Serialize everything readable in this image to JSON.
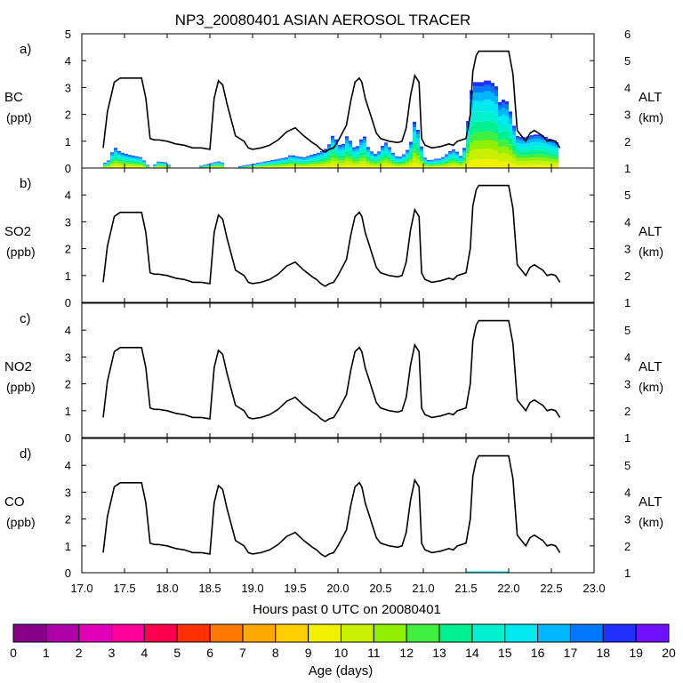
{
  "title": "NP3_20080401 ASIAN AEROSOL TRACER",
  "x_axis": {
    "label": "Hours past 0 UTC on 20080401",
    "range": [
      17.0,
      23.0
    ],
    "ticks": [
      "17.0",
      "17.5",
      "18.0",
      "18.5",
      "19.0",
      "19.5",
      "20.0",
      "20.5",
      "21.0",
      "21.5",
      "22.0",
      "22.5",
      "23.0"
    ]
  },
  "colors": {
    "line": "#000000",
    "palette": [
      "#880088",
      "#b000a8",
      "#e000b8",
      "#ff0098",
      "#ff0050",
      "#ff3000",
      "#ff7800",
      "#ffa800",
      "#ffd000",
      "#f0f000",
      "#c8f000",
      "#90f000",
      "#40f040",
      "#00f090",
      "#00f0d0",
      "#00e8f0",
      "#00b8ff",
      "#0078ff",
      "#2030ff",
      "#7010ff"
    ]
  },
  "panels": [
    {
      "letter": "a)",
      "species": "BC",
      "units": "(ppt)",
      "left_ticks": [
        "0",
        "1",
        "2",
        "3",
        "4",
        "5"
      ],
      "right_ticks": [
        "1",
        "2",
        "3",
        "4",
        "5",
        "6"
      ],
      "right_label": "ALT",
      "right_units": "(km)"
    },
    {
      "letter": "b)",
      "species": "SO2",
      "units": "(ppb)",
      "left_ticks": [
        "0",
        "1",
        "2",
        "3",
        "4"
      ],
      "right_ticks": [
        "1",
        "2",
        "3",
        "4",
        "5"
      ],
      "right_label": "ALT",
      "right_units": "(km)"
    },
    {
      "letter": "c)",
      "species": "NO2",
      "units": "(ppb)",
      "left_ticks": [
        "0",
        "1",
        "2",
        "3",
        "4"
      ],
      "right_ticks": [
        "1",
        "2",
        "3",
        "4",
        "5"
      ],
      "right_label": "ALT",
      "right_units": "(km)"
    },
    {
      "letter": "d)",
      "species": "CO",
      "units": "(ppb)",
      "left_ticks": [
        "0",
        "1",
        "2",
        "3",
        "4"
      ],
      "right_ticks": [
        "1",
        "2",
        "3",
        "4",
        "5"
      ],
      "right_label": "ALT",
      "right_units": "(km)"
    }
  ],
  "colorbar": {
    "label": "Age (days)",
    "ticks": [
      "0",
      "1",
      "2",
      "3",
      "4",
      "5",
      "6",
      "7",
      "8",
      "9",
      "10",
      "11",
      "12",
      "13",
      "14",
      "15",
      "16",
      "17",
      "18",
      "19",
      "20"
    ]
  },
  "chart_data": {
    "type": "area",
    "title": "NP3_20080401 ASIAN AEROSOL TRACER",
    "xlabel": "Hours past 0 UTC on 20080401",
    "xlim": [
      17.0,
      23.0
    ],
    "altitude_km": {
      "x": [
        17.25,
        17.3,
        17.38,
        17.45,
        17.5,
        17.7,
        17.75,
        17.8,
        17.85,
        17.9,
        18.0,
        18.1,
        18.2,
        18.3,
        18.4,
        18.5,
        18.55,
        18.6,
        18.65,
        18.7,
        18.8,
        18.9,
        18.95,
        19.0,
        19.1,
        19.2,
        19.3,
        19.4,
        19.5,
        19.6,
        19.7,
        19.75,
        19.8,
        19.85,
        19.9,
        19.95,
        20.0,
        20.1,
        20.15,
        20.2,
        20.25,
        20.28,
        20.32,
        20.38,
        20.45,
        20.5,
        20.6,
        20.7,
        20.75,
        20.8,
        20.85,
        20.9,
        20.95,
        20.98,
        21.02,
        21.1,
        21.2,
        21.3,
        21.35,
        21.4,
        21.5,
        21.55,
        21.58,
        21.62,
        21.65,
        21.7,
        21.75,
        21.8,
        21.85,
        21.9,
        21.95,
        22.0,
        22.05,
        22.1,
        22.15,
        22.2,
        22.25,
        22.3,
        22.4,
        22.45,
        22.5,
        22.55,
        22.6
      ],
      "y": [
        1.75,
        3.1,
        4.2,
        4.35,
        4.35,
        4.35,
        3.6,
        2.1,
        2.05,
        2.05,
        2.0,
        1.9,
        1.85,
        1.75,
        1.75,
        1.7,
        3.6,
        4.25,
        4.1,
        3.4,
        2.2,
        2.0,
        1.75,
        1.7,
        1.75,
        1.85,
        2.05,
        2.35,
        2.5,
        2.2,
        1.95,
        1.85,
        1.7,
        1.6,
        1.7,
        1.75,
        2.0,
        2.6,
        3.5,
        4.2,
        4.35,
        4.2,
        3.6,
        3.0,
        2.3,
        2.1,
        2.0,
        1.95,
        2.0,
        2.5,
        3.7,
        4.45,
        4.2,
        2.1,
        1.85,
        1.75,
        1.8,
        1.9,
        1.85,
        2.0,
        2.1,
        3.0,
        4.6,
        5.2,
        5.35,
        5.35,
        5.35,
        5.35,
        5.35,
        5.35,
        5.35,
        5.35,
        4.5,
        2.4,
        2.2,
        2.0,
        2.3,
        2.4,
        2.2,
        2.0,
        2.05,
        2.0,
        1.75
      ]
    },
    "bc_tracer_total_ppt": {
      "x": [
        17.25,
        17.32,
        17.38,
        17.45,
        17.5,
        17.55,
        17.7,
        17.8,
        17.9,
        18.0,
        18.05,
        18.1,
        18.3,
        18.6,
        18.65,
        18.7,
        18.75,
        19.4,
        19.45,
        19.5,
        19.6,
        19.7,
        19.75,
        19.8,
        19.85,
        19.9,
        19.95,
        20.0,
        20.05,
        20.1,
        20.15,
        20.2,
        20.25,
        20.3,
        20.35,
        20.4,
        20.45,
        20.5,
        20.55,
        20.6,
        20.65,
        20.7,
        20.75,
        20.8,
        20.85,
        20.9,
        20.95,
        21.0,
        21.05,
        21.1,
        21.15,
        21.2,
        21.25,
        21.3,
        21.35,
        21.4,
        21.45,
        21.5,
        21.55,
        21.6,
        21.65,
        21.7,
        21.75,
        21.8,
        21.85,
        21.9,
        21.95,
        22.0,
        22.05,
        22.1,
        22.15,
        22.2,
        22.25,
        22.3,
        22.35,
        22.4,
        22.45,
        22.5,
        22.55,
        22.6
      ],
      "y": [
        0.15,
        0.3,
        0.8,
        0.6,
        0.55,
        0.5,
        0.4,
        0.0,
        0.25,
        0.2,
        0.0,
        0.0,
        0.0,
        0.25,
        0.2,
        0.0,
        0.0,
        0.4,
        0.5,
        0.45,
        0.4,
        0.5,
        0.55,
        0.6,
        0.7,
        0.9,
        1.3,
        0.9,
        0.8,
        1.2,
        1.0,
        0.7,
        0.9,
        1.3,
        0.8,
        0.6,
        0.5,
        0.7,
        1.0,
        0.8,
        0.55,
        0.4,
        0.45,
        0.6,
        0.9,
        1.8,
        1.3,
        0.45,
        0.3,
        0.3,
        0.35,
        0.35,
        0.45,
        0.6,
        0.7,
        0.6,
        0.4,
        1.0,
        2.8,
        3.2,
        3.2,
        3.2,
        3.3,
        3.2,
        3.1,
        2.4,
        2.6,
        2.4,
        1.7,
        1.2,
        1.15,
        1.15,
        1.2,
        1.25,
        1.25,
        1.2,
        1.15,
        1.05,
        1.0,
        0.85
      ]
    },
    "co_tracer": {
      "x": [
        21.5,
        22.0
      ],
      "approx_ppb": 0.05,
      "age_days": "15-16"
    },
    "series": [
      {
        "name": "BC",
        "units": "ppt",
        "ylim": [
          0,
          5
        ]
      },
      {
        "name": "SO2",
        "units": "ppb",
        "ylim": [
          0,
          5
        ]
      },
      {
        "name": "NO2",
        "units": "ppb",
        "ylim": [
          0,
          5
        ]
      },
      {
        "name": "CO",
        "units": "ppb",
        "ylim": [
          0,
          5
        ]
      }
    ],
    "right_axis": {
      "label": "ALT",
      "units": "km",
      "ylim_panel_a": [
        1,
        6
      ],
      "ylim_other_panels": [
        1,
        6
      ]
    },
    "colorbar": {
      "label": "Age (days)",
      "range": [
        0,
        20
      ],
      "bins": 20
    }
  }
}
